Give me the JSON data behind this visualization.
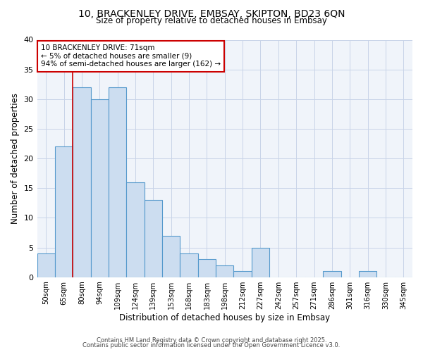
{
  "title_line1": "10, BRACKENLEY DRIVE, EMBSAY, SKIPTON, BD23 6QN",
  "title_line2": "Size of property relative to detached houses in Embsay",
  "xlabel": "Distribution of detached houses by size in Embsay",
  "ylabel": "Number of detached properties",
  "categories": [
    "50sqm",
    "65sqm",
    "80sqm",
    "94sqm",
    "109sqm",
    "124sqm",
    "139sqm",
    "153sqm",
    "168sqm",
    "183sqm",
    "198sqm",
    "212sqm",
    "227sqm",
    "242sqm",
    "257sqm",
    "271sqm",
    "286sqm",
    "301sqm",
    "316sqm",
    "330sqm",
    "345sqm"
  ],
  "values": [
    4,
    22,
    32,
    30,
    32,
    16,
    13,
    7,
    4,
    3,
    2,
    1,
    5,
    0,
    0,
    0,
    1,
    0,
    1,
    0,
    0
  ],
  "bar_color": "#ccddf0",
  "bar_edge_color": "#5599cc",
  "annotation_text_line1": "10 BRACKENLEY DRIVE: 71sqm",
  "annotation_text_line2": "← 5% of detached houses are smaller (9)",
  "annotation_text_line3": "94% of semi-detached houses are larger (162) →",
  "annotation_box_facecolor": "#ffffff",
  "annotation_box_edgecolor": "#cc0000",
  "vline_color": "#cc0000",
  "vline_x": 1.5,
  "ylim": [
    0,
    40
  ],
  "yticks": [
    0,
    5,
    10,
    15,
    20,
    25,
    30,
    35,
    40
  ],
  "grid_color": "#c8d4e8",
  "bg_color": "#ffffff",
  "plot_bg_color": "#f0f4fa",
  "footnote_line1": "Contains HM Land Registry data © Crown copyright and database right 2025.",
  "footnote_line2": "Contains public sector information licensed under the Open Government Licence v3.0."
}
